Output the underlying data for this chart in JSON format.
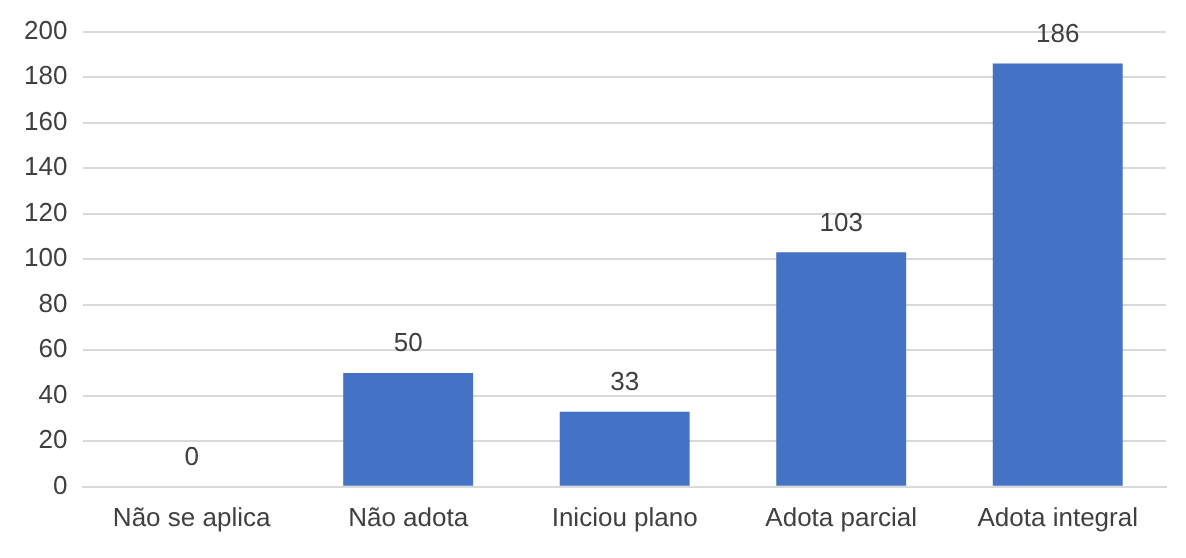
{
  "chart_data": {
    "type": "bar",
    "categories": [
      "Não se aplica",
      "Não adota",
      "Iniciou plano",
      "Adota parcial",
      "Adota integral"
    ],
    "values": [
      0,
      50,
      33,
      103,
      186
    ],
    "color": "#4472c4",
    "ylim": [
      0,
      200
    ],
    "yticks": [
      0,
      20,
      40,
      60,
      80,
      100,
      120,
      140,
      160,
      180,
      200
    ],
    "grid": "y",
    "data_labels": true,
    "legend": false
  }
}
